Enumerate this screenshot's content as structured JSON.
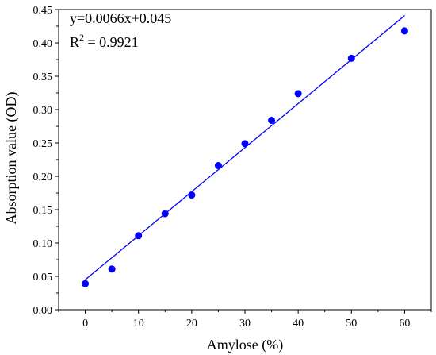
{
  "chart_data": {
    "type": "scatter",
    "title": "",
    "xlabel": "Amylose (%)",
    "ylabel": "Absorption value (OD)",
    "xlim": [
      -5,
      65
    ],
    "ylim": [
      0.0,
      0.45
    ],
    "xticks": [
      0,
      10,
      20,
      30,
      40,
      50,
      60
    ],
    "xtick_labels": [
      "0",
      "10",
      "20",
      "30",
      "40",
      "50",
      "60"
    ],
    "yticks": [
      0.0,
      0.05,
      0.1,
      0.15,
      0.2,
      0.25,
      0.3,
      0.35,
      0.4,
      0.45
    ],
    "ytick_labels": [
      "0.00",
      "0.05",
      "0.10",
      "0.15",
      "0.20",
      "0.25",
      "0.30",
      "0.35",
      "0.40",
      "0.45"
    ],
    "grid": false,
    "legend": "none",
    "series": [
      {
        "x": [
          0,
          5,
          10,
          15,
          20,
          25,
          30,
          35,
          40,
          50,
          60
        ],
        "y": [
          0.039,
          0.061,
          0.111,
          0.144,
          0.172,
          0.216,
          0.249,
          0.284,
          0.324,
          0.377,
          0.418
        ],
        "color": "#0000ff",
        "marker": "circle"
      }
    ],
    "fit_line": {
      "slope": 0.0066,
      "intercept": 0.045,
      "x_range": [
        0,
        60
      ],
      "color": "#0000ff"
    },
    "annotation": {
      "equation": "y=0.0066x+0.045",
      "r2_prefix": "R",
      "r2_sup": "2",
      "r2_value": " = 0.9921"
    },
    "frame_color": "#000000"
  }
}
